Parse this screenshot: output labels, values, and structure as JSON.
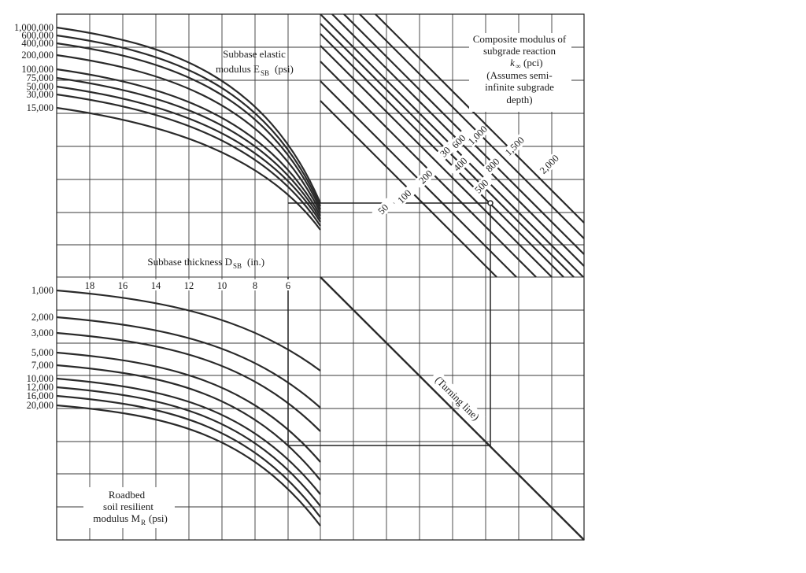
{
  "chart_data": {
    "type": "nomograph",
    "description_labels": {
      "esb_title_1": "Subbase elastic",
      "esb_title_2": "modulus E",
      "esb_title_sub": "SB",
      "esb_title_unit": "(psi)",
      "dsb_title": "Subbase thickness D",
      "dsb_title_sub": "SB",
      "dsb_title_unit": "(in.)",
      "mr_title_1": "Roadbed",
      "mr_title_2": "soil resilient",
      "mr_title_3": "modulus M",
      "mr_title_sub": "R",
      "mr_title_unit": "(psi)",
      "k_title_1": "Composite modulus of",
      "k_title_2": "subgrade reaction",
      "k_title_3": "k",
      "k_title_sub": "∞",
      "k_title_unit": "(pci)",
      "k_title_4": "(Assumes semi-",
      "k_title_5": "infinite subgrade",
      "k_title_6": "depth)",
      "turning_line": "(Turning line)"
    },
    "esb_ticks": [
      "1,000,000",
      "600,000",
      "400,000",
      "200,000",
      "100,000",
      "75,000",
      "50,000",
      "30,000",
      "15,000"
    ],
    "mr_ticks": [
      "1,000",
      "2,000",
      "3,000",
      "5,000",
      "7,000",
      "10,000",
      "12,000",
      "16,000",
      "20,000"
    ],
    "dsb_ticks": [
      "18",
      "16",
      "14",
      "12",
      "10",
      "8",
      "6"
    ],
    "k_labels": [
      "50",
      "100",
      "200",
      "300",
      "400",
      "500",
      "600",
      "800",
      "1,000",
      "1,500",
      "2,000"
    ],
    "example": {
      "dsb_in": 6,
      "k_pci": 500
    }
  }
}
